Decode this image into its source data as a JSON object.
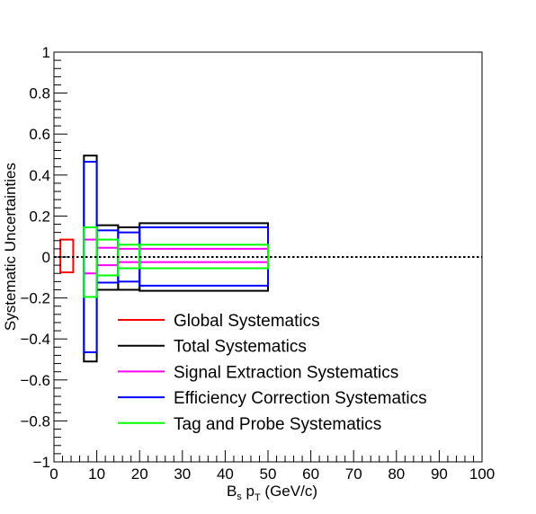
{
  "chart_data": {
    "type": "box-error",
    "title": "",
    "xlabel": {
      "main": "B",
      "sub1": "s",
      "mid": " p",
      "sub2": "T",
      "tail": " (GeV/c)"
    },
    "ylabel": "Systematic Uncertainties",
    "xlim": [
      0,
      100
    ],
    "ylim": [
      -1,
      1
    ],
    "x_ticks": [
      0,
      10,
      20,
      30,
      40,
      50,
      60,
      70,
      80,
      90,
      100
    ],
    "x_tick_labels": [
      "0",
      "10",
      "20",
      "30",
      "40",
      "50",
      "60",
      "70",
      "80",
      "90",
      "100"
    ],
    "y_ticks": [
      -1,
      -0.8,
      -0.6,
      -0.4,
      -0.2,
      0,
      0.2,
      0.4,
      0.6,
      0.8,
      1
    ],
    "y_tick_labels": [
      "−1",
      "−0.8",
      "−0.6",
      "−0.4",
      "−0.2",
      "0",
      "0.2",
      "0.4",
      "0.6",
      "0.8",
      "1"
    ],
    "zero_line": {
      "y": 0,
      "style": "dotted"
    },
    "legend_position": "bottom-center",
    "series": [
      {
        "name": "Global Systematics",
        "color": "#ff0000",
        "boxes": [
          {
            "x0": 1.5,
            "x1": 4.5,
            "y0": -0.075,
            "y1": 0.085
          }
        ]
      },
      {
        "name": "Total Systematics",
        "color": "#000000",
        "boxes": [
          {
            "x0": 7,
            "x1": 10,
            "y0": -0.51,
            "y1": 0.495
          },
          {
            "x0": 10,
            "x1": 15,
            "y0": -0.16,
            "y1": 0.155
          },
          {
            "x0": 15,
            "x1": 20,
            "y0": -0.16,
            "y1": 0.145
          },
          {
            "x0": 20,
            "x1": 50,
            "y0": -0.165,
            "y1": 0.165
          }
        ]
      },
      {
        "name": "Signal Extraction Systematics",
        "color": "#ff00ff",
        "boxes": [
          {
            "x0": 7,
            "x1": 10,
            "y0": -0.08,
            "y1": 0.085
          },
          {
            "x0": 10,
            "x1": 15,
            "y0": -0.04,
            "y1": 0.045
          },
          {
            "x0": 15,
            "x1": 20,
            "y0": -0.025,
            "y1": 0.04
          },
          {
            "x0": 20,
            "x1": 50,
            "y0": -0.025,
            "y1": 0.04
          }
        ]
      },
      {
        "name": "Efficiency Correction Systematics",
        "color": "#0000ff",
        "boxes": [
          {
            "x0": 7,
            "x1": 10,
            "y0": -0.465,
            "y1": 0.465
          },
          {
            "x0": 10,
            "x1": 15,
            "y0": -0.125,
            "y1": 0.13
          },
          {
            "x0": 15,
            "x1": 20,
            "y0": -0.12,
            "y1": 0.12
          },
          {
            "x0": 20,
            "x1": 50,
            "y0": -0.14,
            "y1": 0.145
          }
        ]
      },
      {
        "name": "Tag and Probe Systematics",
        "color": "#00ff00",
        "boxes": [
          {
            "x0": 7,
            "x1": 10,
            "y0": -0.195,
            "y1": 0.145
          },
          {
            "x0": 10,
            "x1": 15,
            "y0": -0.09,
            "y1": 0.085
          },
          {
            "x0": 15,
            "x1": 20,
            "y0": -0.055,
            "y1": 0.06
          },
          {
            "x0": 20,
            "x1": 50,
            "y0": -0.055,
            "y1": 0.06
          }
        ]
      }
    ]
  }
}
